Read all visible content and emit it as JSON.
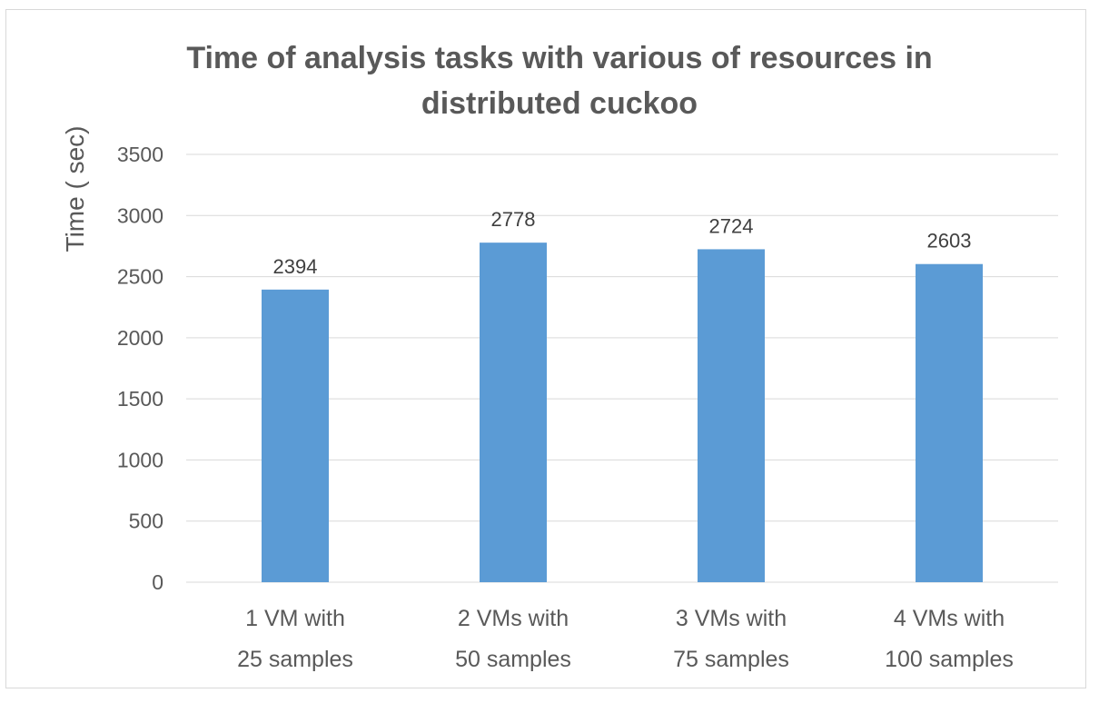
{
  "chart_data": {
    "type": "bar",
    "title": [
      "Time of analysis tasks with various of resources in",
      "distributed cuckoo"
    ],
    "ylabel": "Time ( sec)",
    "xlabel": "",
    "ylim": [
      0,
      3500
    ],
    "yticks": [
      0,
      500,
      1000,
      1500,
      2000,
      2500,
      3000,
      3500
    ],
    "grid": true,
    "categories": [
      [
        "1 VM with",
        "25 samples"
      ],
      [
        "2 VMs with",
        "50 samples"
      ],
      [
        "3 VMs with",
        "75 samples"
      ],
      [
        "4 VMs with",
        "100 samples"
      ]
    ],
    "values": [
      2394,
      2778,
      2724,
      2603
    ],
    "data_labels": [
      "2394",
      "2778",
      "2724",
      "2603"
    ],
    "colors": {
      "bar": "#5b9bd5",
      "grid": "#d9d9d9",
      "text": "#595959"
    }
  }
}
